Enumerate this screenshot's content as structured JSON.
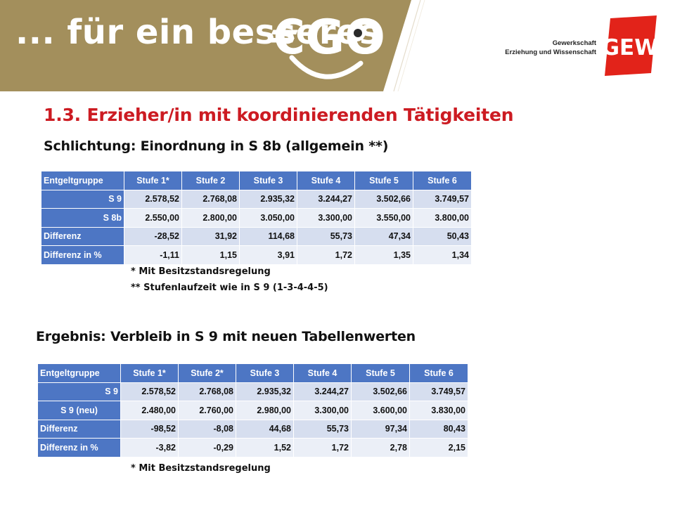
{
  "header": {
    "slogan": "... für ein besseres",
    "brand_mark": "€GO",
    "org_line1": "Gewerkschaft",
    "org_line2": "Erziehung und Wissenschaft",
    "logo_text": "GEW",
    "colors": {
      "banner": "#a38f5c",
      "logo_red": "#e2231a"
    }
  },
  "title": "1.3. Erzieher/in mit koordinierenden Tätigkeiten",
  "section1": {
    "heading": "Schlichtung: Einordnung in S 8b (allgemein **)",
    "table": {
      "headers": [
        "Entgeltgruppe",
        "Stufe 1*",
        "Stufe 2",
        "Stufe 3",
        "Stufe 4",
        "Stufe 5",
        "Stufe 6"
      ],
      "rows": [
        {
          "label": "S 9",
          "values": [
            "2.578,52",
            "2.768,08",
            "2.935,32",
            "3.244,27",
            "3.502,66",
            "3.749,57"
          ]
        },
        {
          "label": "S 8b",
          "values": [
            "2.550,00",
            "2.800,00",
            "3.050,00",
            "3.300,00",
            "3.550,00",
            "3.800,00"
          ]
        },
        {
          "label": "Differenz",
          "values": [
            "-28,52",
            "31,92",
            "114,68",
            "55,73",
            "47,34",
            "50,43"
          ]
        },
        {
          "label": "Differenz in %",
          "values": [
            "-1,11",
            "1,15",
            "3,91",
            "1,72",
            "1,35",
            "1,34"
          ]
        }
      ]
    },
    "notes": [
      "* Mit Besitzstandsregelung",
      "** Stufenlaufzeit wie in S 9 (1-3-4-4-5)"
    ]
  },
  "section2": {
    "heading": "Ergebnis: Verbleib in S 9 mit neuen Tabellenwerten",
    "table": {
      "headers": [
        "Entgeltgruppe",
        "Stufe 1*",
        "Stufe 2*",
        "Stufe 3",
        "Stufe 4",
        "Stufe 5",
        "Stufe 6"
      ],
      "rows": [
        {
          "label": "S 9",
          "values": [
            "2.578,52",
            "2.768,08",
            "2.935,32",
            "3.244,27",
            "3.502,66",
            "3.749,57"
          ]
        },
        {
          "label": "S 9 (neu)",
          "values": [
            "2.480,00",
            "2.760,00",
            "2.980,00",
            "3.300,00",
            "3.600,00",
            "3.830,00"
          ]
        },
        {
          "label": "Differenz",
          "values": [
            "-98,52",
            "-8,08",
            "44,68",
            "55,73",
            "97,34",
            "80,43"
          ]
        },
        {
          "label": "Differenz in %",
          "values": [
            "-3,82",
            "-0,29",
            "1,52",
            "1,72",
            "2,78",
            "2,15"
          ]
        }
      ]
    },
    "notes": [
      "* Mit Besitzstandsregelung"
    ]
  }
}
